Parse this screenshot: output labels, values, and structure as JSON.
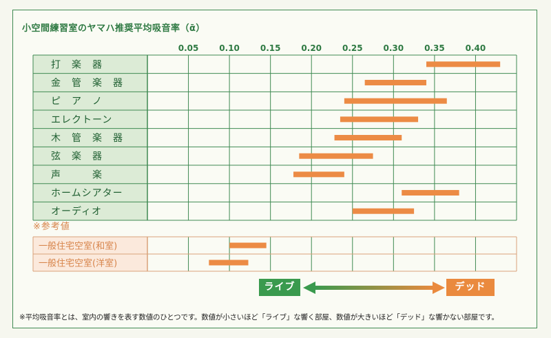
{
  "chart_data": {
    "type": "range-bar",
    "title": "小空間練習室のヤマハ推奨平均吸音率（ᾱ）",
    "x_ticks": [
      "0.05",
      "0.10",
      "0.15",
      "0.20",
      "0.25",
      "0.30",
      "0.35",
      "0.40"
    ],
    "xlim": [
      0.0,
      0.45
    ],
    "grid": true,
    "rows": [
      {
        "label": "打　楽　器",
        "range": [
          0.34,
          0.43
        ]
      },
      {
        "label": "金　管　楽　器",
        "range": [
          0.265,
          0.34
        ]
      },
      {
        "label": "ピ　ア　ノ",
        "range": [
          0.24,
          0.365
        ]
      },
      {
        "label": "エレクトーン",
        "range": [
          0.235,
          0.33
        ]
      },
      {
        "label": "木　管　楽　器",
        "range": [
          0.228,
          0.31
        ]
      },
      {
        "label": "弦　楽　器",
        "range": [
          0.185,
          0.275
        ]
      },
      {
        "label": "声　　　楽",
        "range": [
          0.178,
          0.24
        ]
      },
      {
        "label": "ホームシアター",
        "range": [
          0.31,
          0.38
        ]
      },
      {
        "label": "オーディオ",
        "range": [
          0.25,
          0.325
        ]
      }
    ],
    "reference_heading": "※参考値",
    "reference_rows": [
      {
        "label": "一般住宅空室(和室)",
        "range": [
          0.1,
          0.145
        ]
      },
      {
        "label": "一般住宅空室(洋室)",
        "range": [
          0.075,
          0.123
        ]
      }
    ],
    "scale": {
      "left": "ライブ",
      "right": "デッド"
    },
    "colors": {
      "bar": "#ec8b45",
      "grid": "#3f8a52",
      "live": "#3a9a4e",
      "dead": "#ea8a3e",
      "ref_border": "#d9a27a",
      "label_bg": "#dcebd6"
    }
  },
  "footnote": "※平均吸音率とは、室内の響きを表す数値のひとつです。数値が小さいほど「ライブ」な響く部屋、数値が大きいほど「デッド」な響かない部屋です。"
}
